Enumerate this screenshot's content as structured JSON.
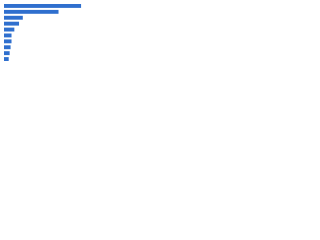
{
  "chart_data": {
    "type": "bar",
    "orientation": "horizontal",
    "values": [
      82,
      58,
      20,
      16,
      11,
      8,
      8,
      7,
      6,
      5
    ],
    "color": "#2f6fce",
    "xlim": [
      0,
      100
    ]
  }
}
